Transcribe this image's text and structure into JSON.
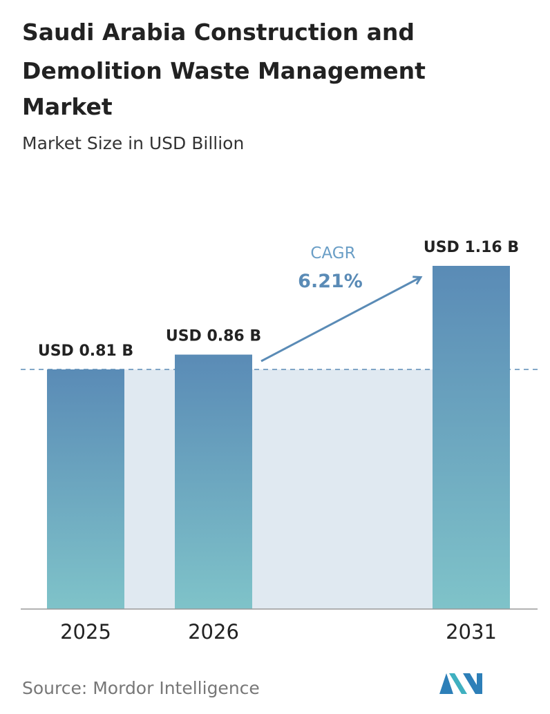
{
  "chart_data": {
    "type": "bar",
    "title_lines": [
      "Saudi Arabia Construction and",
      "Demolition Waste Management",
      "Market"
    ],
    "subtitle": "Market Size in USD Billion",
    "categories": [
      "2025",
      "2026",
      "2031"
    ],
    "values": [
      0.81,
      0.86,
      1.16
    ],
    "value_labels": [
      "USD 0.81 B",
      "USD 0.86 B",
      "USD 1.16 B"
    ],
    "cagr_label": "CAGR",
    "cagr_value": "6.21%",
    "source": "Source:  Mordor Intelligence"
  }
}
